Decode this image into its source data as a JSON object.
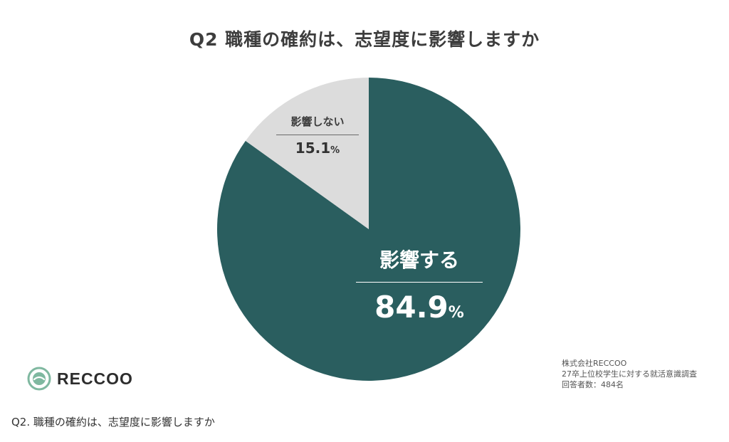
{
  "chart_data": {
    "type": "pie",
    "title": "Q2 職種の確約は、志望度に影響しますか",
    "slices": [
      {
        "label": "影響する",
        "value": 84.9,
        "value_text": "84.9",
        "color": "#2a5e5f"
      },
      {
        "label": "影響しない",
        "value": 15.1,
        "value_text": "15.1",
        "color": "#dcdcdc"
      }
    ],
    "percent_symbol": "%",
    "start": "top",
    "direction": "clockwise"
  },
  "logo": {
    "text": "RECCOO",
    "color": "#7fb8a0"
  },
  "source": {
    "line1": "株式会社RECCOO",
    "line2": "27卒上位校学生に対する就活意識調査",
    "line3": "回答者数：484名"
  },
  "caption": "Q2. 職種の確約は、志望度に影響しますか"
}
